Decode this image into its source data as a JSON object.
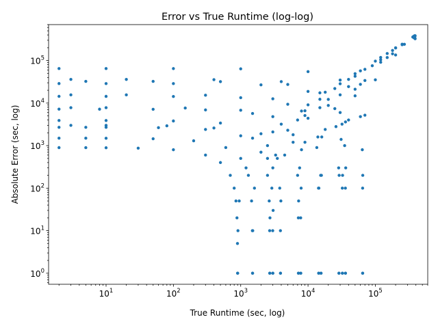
{
  "chart_data": {
    "type": "scatter",
    "title": "Error vs True Runtime (log-log)",
    "xlabel": "True Runtime (sec, log)",
    "ylabel": "Absolute Error (sec, log)",
    "xscale": "log",
    "yscale": "log",
    "xlim": [
      1.4,
      600000
    ],
    "ylim": [
      0.55,
      700000
    ],
    "x_ticks": [
      {
        "value": 10,
        "base": "10",
        "exp": "1"
      },
      {
        "value": 100,
        "base": "10",
        "exp": "2"
      },
      {
        "value": 1000,
        "base": "10",
        "exp": "3"
      },
      {
        "value": 10000,
        "base": "10",
        "exp": "4"
      },
      {
        "value": 100000,
        "base": "10",
        "exp": "5"
      }
    ],
    "y_ticks": [
      {
        "value": 1,
        "base": "10",
        "exp": "0"
      },
      {
        "value": 10,
        "base": "10",
        "exp": "1"
      },
      {
        "value": 100,
        "base": "10",
        "exp": "2"
      },
      {
        "value": 1000,
        "base": "10",
        "exp": "3"
      },
      {
        "value": 10000,
        "base": "10",
        "exp": "4"
      },
      {
        "value": 100000,
        "base": "10",
        "exp": "5"
      }
    ],
    "grid": false,
    "legend": "none",
    "marker_color": "#1f77b4",
    "series": [
      {
        "predicted_runtime": 900,
        "points": [
          [
            2,
            898
          ],
          [
            5,
            895
          ],
          [
            10,
            890
          ],
          [
            30,
            870
          ],
          [
            100,
            800
          ],
          [
            300,
            600
          ],
          [
            500,
            400
          ],
          [
            700,
            200
          ],
          [
            800,
            100
          ],
          [
            850,
            50
          ],
          [
            880,
            20
          ],
          [
            895,
            5
          ],
          [
            899,
            1
          ],
          [
            901,
            1
          ],
          [
            910,
            10
          ],
          [
            950,
            50
          ],
          [
            1200,
            300
          ],
          [
            3000,
            2100
          ],
          [
            10000,
            9100
          ],
          [
            50000,
            49100
          ],
          [
            200000,
            199100
          ],
          [
            380000,
            379100
          ]
        ]
      },
      {
        "predicted_runtime": 1500,
        "points": [
          [
            2,
            1498
          ],
          [
            5,
            1495
          ],
          [
            10,
            1490
          ],
          [
            50,
            1450
          ],
          [
            200,
            1300
          ],
          [
            600,
            900
          ],
          [
            1000,
            500
          ],
          [
            1300,
            200
          ],
          [
            1450,
            50
          ],
          [
            1490,
            10
          ],
          [
            1499,
            1
          ],
          [
            1501,
            1
          ],
          [
            1510,
            10
          ],
          [
            1600,
            100
          ],
          [
            2500,
            1000
          ],
          [
            8000,
            6500
          ],
          [
            30000,
            28500
          ],
          [
            120000,
            118500
          ],
          [
            370000,
            368500
          ]
        ]
      },
      {
        "predicted_runtime": 2700,
        "points": [
          [
            2,
            2698
          ],
          [
            5,
            2695
          ],
          [
            10,
            2690
          ],
          [
            60,
            2640
          ],
          [
            300,
            2400
          ],
          [
            1000,
            1700
          ],
          [
            2000,
            700
          ],
          [
            2500,
            200
          ],
          [
            2650,
            50
          ],
          [
            2690,
            10
          ],
          [
            2699,
            1
          ],
          [
            2701,
            1
          ],
          [
            2720,
            20
          ],
          [
            3000,
            300
          ],
          [
            5000,
            2300
          ],
          [
            15000,
            12300
          ],
          [
            60000,
            57300
          ],
          [
            200000,
            197300
          ],
          [
            385000,
            382300
          ]
        ]
      },
      {
        "predicted_runtime": 3000,
        "points": [
          [
            3,
            2997
          ],
          [
            10,
            2990
          ],
          [
            80,
            2920
          ],
          [
            400,
            2600
          ],
          [
            1500,
            1500
          ],
          [
            2500,
            500
          ],
          [
            2900,
            100
          ],
          [
            2990,
            10
          ],
          [
            2999,
            1
          ],
          [
            3001,
            1
          ],
          [
            3030,
            30
          ],
          [
            3500,
            500
          ],
          [
            7000,
            4000
          ],
          [
            25000,
            22000
          ],
          [
            100000,
            97000
          ],
          [
            360000,
            357000
          ]
        ]
      },
      {
        "predicted_runtime": 3900,
        "points": [
          [
            2,
            3898
          ],
          [
            10,
            3890
          ],
          [
            100,
            3800
          ],
          [
            500,
            3400
          ],
          [
            2000,
            1900
          ],
          [
            3300,
            600
          ],
          [
            3800,
            100
          ],
          [
            3890,
            10
          ],
          [
            3899,
            1
          ],
          [
            3901,
            1
          ],
          [
            3950,
            50
          ],
          [
            4500,
            600
          ],
          [
            9000,
            5100
          ],
          [
            40000,
            36100
          ],
          [
            150000,
            146100
          ],
          [
            375000,
            371100
          ]
        ]
      },
      {
        "predicted_runtime": 7200,
        "points": [
          [
            2,
            7198
          ],
          [
            8,
            7192
          ],
          [
            50,
            7150
          ],
          [
            300,
            6900
          ],
          [
            1500,
            5700
          ],
          [
            4000,
            3200
          ],
          [
            6000,
            1200
          ],
          [
            7000,
            200
          ],
          [
            7180,
            20
          ],
          [
            7199,
            1
          ],
          [
            7201,
            1
          ],
          [
            7250,
            50
          ],
          [
            8000,
            800
          ],
          [
            15000,
            7800
          ],
          [
            50000,
            42800
          ],
          [
            180000,
            172800
          ],
          [
            390000,
            382800
          ]
        ]
      },
      {
        "predicted_runtime": 7800,
        "points": [
          [
            3,
            7797
          ],
          [
            10,
            7790
          ],
          [
            150,
            7650
          ],
          [
            1000,
            6800
          ],
          [
            3000,
            4800
          ],
          [
            6000,
            1800
          ],
          [
            7500,
            300
          ],
          [
            7780,
            20
          ],
          [
            7799,
            1
          ],
          [
            7801,
            1
          ],
          [
            7900,
            100
          ],
          [
            9000,
            1200
          ],
          [
            20000,
            12200
          ],
          [
            70000,
            62200
          ],
          [
            250000,
            242200
          ],
          [
            370000,
            362200
          ]
        ]
      },
      {
        "predicted_runtime": 14400,
        "points": [
          [
            2,
            14398
          ],
          [
            10,
            14390
          ],
          [
            100,
            14300
          ],
          [
            1000,
            13400
          ],
          [
            5000,
            9400
          ],
          [
            10000,
            4400
          ],
          [
            13500,
            900
          ],
          [
            14300,
            100
          ],
          [
            14399,
            1
          ],
          [
            14401,
            1
          ],
          [
            14500,
            100
          ],
          [
            16000,
            1600
          ],
          [
            30000,
            15600
          ],
          [
            90000,
            75600
          ],
          [
            250000,
            235600
          ],
          [
            385000,
            370600
          ]
        ]
      },
      {
        "predicted_runtime": 15600,
        "points": [
          [
            3,
            15597
          ],
          [
            20,
            15580
          ],
          [
            300,
            15300
          ],
          [
            3000,
            12600
          ],
          [
            9000,
            6600
          ],
          [
            14000,
            1600
          ],
          [
            15400,
            200
          ],
          [
            15599,
            1
          ],
          [
            15601,
            1
          ],
          [
            15800,
            200
          ],
          [
            18000,
            2400
          ],
          [
            40000,
            24400
          ],
          [
            120000,
            104400
          ],
          [
            380000,
            364400
          ]
        ]
      },
      {
        "predicted_runtime": 28800,
        "points": [
          [
            2,
            28798
          ],
          [
            10,
            28790
          ],
          [
            100,
            28700
          ],
          [
            2000,
            26800
          ],
          [
            10000,
            18800
          ],
          [
            20000,
            8800
          ],
          [
            26000,
            2800
          ],
          [
            28500,
            300
          ],
          [
            28799,
            1
          ],
          [
            28801,
            1
          ],
          [
            29000,
            200
          ],
          [
            32000,
            3200
          ],
          [
            50000,
            21200
          ],
          [
            120000,
            91200
          ],
          [
            270000,
            241200
          ],
          [
            380000,
            351200
          ]
        ]
      },
      {
        "predicted_runtime": 32400,
        "points": [
          [
            5,
            32395
          ],
          [
            50,
            32350
          ],
          [
            500,
            31900
          ],
          [
            5000,
            27400
          ],
          [
            15000,
            17400
          ],
          [
            25000,
            7400
          ],
          [
            31000,
            1400
          ],
          [
            32300,
            100
          ],
          [
            32399,
            1
          ],
          [
            32401,
            1
          ],
          [
            32600,
            200
          ],
          [
            36000,
            3600
          ],
          [
            60000,
            27600
          ],
          [
            150000,
            117600
          ],
          [
            375000,
            342600
          ]
        ]
      },
      {
        "predicted_runtime": 36000,
        "points": [
          [
            3,
            35997
          ],
          [
            20,
            35980
          ],
          [
            400,
            35600
          ],
          [
            4000,
            32000
          ],
          [
            18000,
            18000
          ],
          [
            30000,
            6000
          ],
          [
            35000,
            1000
          ],
          [
            35900,
            100
          ],
          [
            35999,
            1
          ],
          [
            36001,
            1
          ],
          [
            36300,
            300
          ],
          [
            40000,
            4000
          ],
          [
            70000,
            34000
          ],
          [
            180000,
            144000
          ],
          [
            385000,
            349000
          ]
        ]
      },
      {
        "predicted_runtime": 64800,
        "points": [
          [
            2,
            64798
          ],
          [
            10,
            64790
          ],
          [
            100,
            64700
          ],
          [
            1000,
            63800
          ],
          [
            10000,
            54800
          ],
          [
            30000,
            34800
          ],
          [
            50000,
            14800
          ],
          [
            60000,
            4800
          ],
          [
            64000,
            800
          ],
          [
            64700,
            100
          ],
          [
            64799,
            1
          ],
          [
            64801,
            1
          ],
          [
            65000,
            200
          ],
          [
            70000,
            5200
          ],
          [
            100000,
            35200
          ],
          [
            200000,
            135200
          ],
          [
            390000,
            325200
          ]
        ]
      }
    ]
  }
}
